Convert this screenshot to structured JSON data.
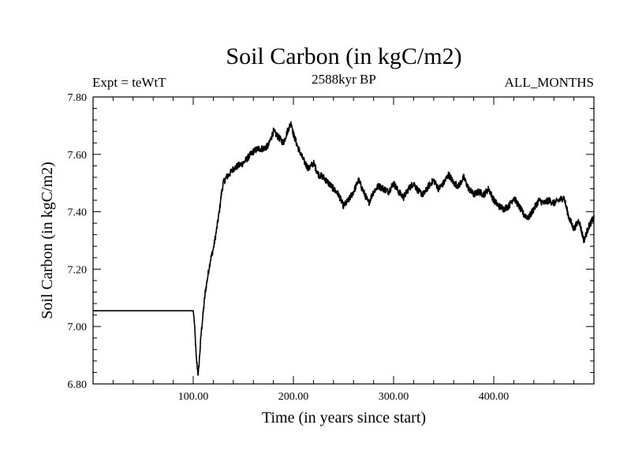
{
  "chart_data": {
    "type": "line",
    "title": "Soil Carbon (in kgC/m2)",
    "subtitle_left": "Expt = teWtT",
    "subtitle_center": "2588kyr BP",
    "subtitle_right": "ALL_MONTHS",
    "xlabel": "Time (in years since start)",
    "ylabel": "Soil Carbon (in kgC/m2)",
    "xlim": [
      0,
      500
    ],
    "ylim": [
      6.8,
      7.8
    ],
    "x_ticks": [
      100,
      200,
      300,
      400
    ],
    "x_tick_labels": [
      "100.00",
      "200.00",
      "300.00",
      "400.00"
    ],
    "y_ticks": [
      6.8,
      7.0,
      7.2,
      7.4,
      7.6,
      7.8
    ],
    "y_tick_labels": [
      "6.80",
      "7.00",
      "7.20",
      "7.40",
      "7.60",
      "7.80"
    ],
    "x_minor_step": 20,
    "y_minor_step": 0.04,
    "noise_amplitude": 0.012,
    "series": [
      {
        "name": "Soil Carbon",
        "color": "#000000",
        "x": [
          0,
          100,
          101,
          102,
          103,
          105,
          108,
          112,
          117,
          120,
          123,
          126,
          128,
          130,
          133,
          136,
          140,
          145,
          150,
          155,
          160,
          165,
          170,
          175,
          180,
          185,
          190,
          195,
          198,
          200,
          205,
          210,
          215,
          220,
          225,
          230,
          235,
          240,
          245,
          250,
          255,
          260,
          265,
          270,
          275,
          280,
          285,
          290,
          295,
          300,
          305,
          310,
          315,
          320,
          325,
          330,
          335,
          340,
          345,
          350,
          355,
          360,
          365,
          370,
          375,
          380,
          385,
          390,
          395,
          400,
          405,
          410,
          415,
          420,
          425,
          430,
          435,
          440,
          445,
          450,
          455,
          460,
          465,
          470,
          475,
          480,
          485,
          490,
          495,
          500
        ],
        "values": [
          7.055,
          7.055,
          7.02,
          6.96,
          6.89,
          6.83,
          6.98,
          7.12,
          7.23,
          7.27,
          7.33,
          7.4,
          7.46,
          7.5,
          7.52,
          7.53,
          7.55,
          7.56,
          7.57,
          7.59,
          7.61,
          7.62,
          7.62,
          7.63,
          7.68,
          7.66,
          7.64,
          7.69,
          7.71,
          7.67,
          7.62,
          7.58,
          7.55,
          7.57,
          7.53,
          7.52,
          7.5,
          7.48,
          7.46,
          7.42,
          7.44,
          7.47,
          7.51,
          7.47,
          7.43,
          7.47,
          7.49,
          7.48,
          7.47,
          7.5,
          7.47,
          7.45,
          7.48,
          7.5,
          7.47,
          7.46,
          7.49,
          7.51,
          7.48,
          7.5,
          7.53,
          7.5,
          7.49,
          7.52,
          7.48,
          7.46,
          7.47,
          7.46,
          7.48,
          7.44,
          7.42,
          7.41,
          7.42,
          7.45,
          7.42,
          7.39,
          7.38,
          7.41,
          7.44,
          7.43,
          7.44,
          7.43,
          7.44,
          7.45,
          7.38,
          7.34,
          7.37,
          7.3,
          7.35,
          7.38
        ]
      }
    ]
  }
}
